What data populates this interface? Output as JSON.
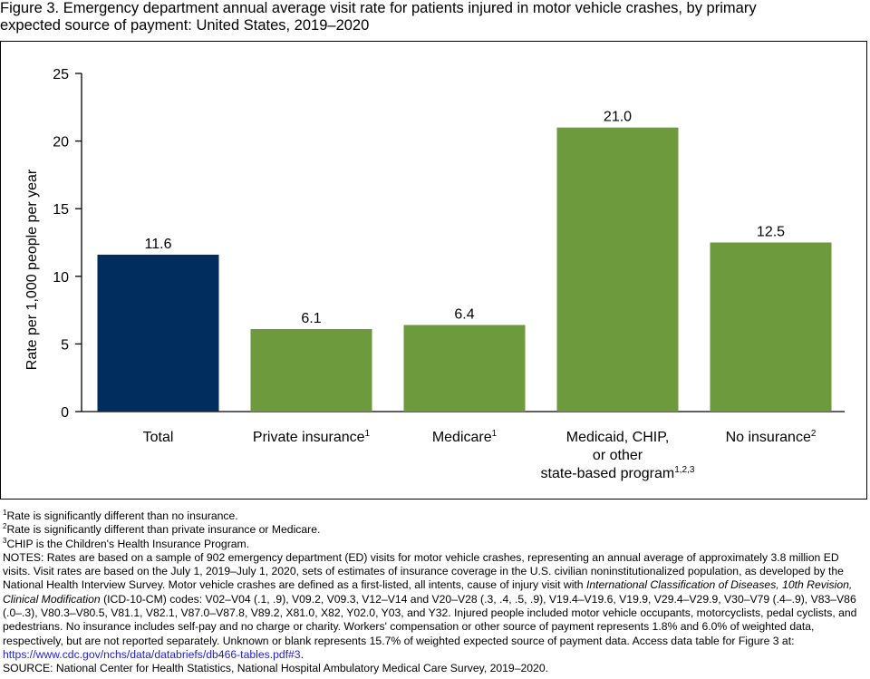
{
  "figure": {
    "title_line1": "Figure 3. Emergency department annual average visit rate for patients injured in motor vehicle crashes, by primary",
    "title_line2": "expected source of payment: United States, 2019–2020"
  },
  "chart_data": {
    "type": "bar",
    "ylabel": "Rate per 1,000 people per year",
    "xlabel": "",
    "ylim": [
      0,
      25
    ],
    "yticks": [
      0,
      5,
      10,
      15,
      20,
      25
    ],
    "grid": false,
    "categories": [
      {
        "lines": [
          "Total"
        ],
        "sup": ""
      },
      {
        "lines": [
          "Private insurance"
        ],
        "sup": "1"
      },
      {
        "lines": [
          "Medicare"
        ],
        "sup": "1"
      },
      {
        "lines": [
          "Medicaid, CHIP,",
          "or other",
          "state-based program"
        ],
        "sup": "1,2,3"
      },
      {
        "lines": [
          "No insurance"
        ],
        "sup": "2"
      }
    ],
    "values": [
      11.6,
      6.1,
      6.4,
      21.0,
      12.5
    ],
    "value_labels": [
      "11.6",
      "6.1",
      "6.4",
      "21.0",
      "12.5"
    ],
    "colors": [
      "#002d5e",
      "#6c9a3c",
      "#6c9a3c",
      "#6c9a3c",
      "#6c9a3c"
    ]
  },
  "footnotes": {
    "fn1": "Rate is significantly different than no insurance.",
    "fn2": "Rate is significantly different than private insurance or Medicare.",
    "fn3": "CHIP is the Children's Health Insurance Program.",
    "notes_a": "NOTES: Rates are based on a sample of 902 emergency department (ED) visits for motor vehicle crashes, representing an annual average of approximately 3.8 million ED visits. Visit rates are based on the July 1, 2019–July 1, 2020, sets of estimates of insurance coverage in the U.S. civilian noninstitutionalized population, as developed by the National Health Interview Survey. Motor vehicle crashes are defined as a first-listed, all intents, cause of injury visit with ",
    "notes_italic": "International Classification of Diseases, 10th Revision, Clinical Modification",
    "notes_b": " (ICD-10-CM) codes: V02–V04 (.1, .9), V09.2, V09.3, V12–V14 and V20–V28 (.3, .4, .5, .9), V19.4–V19.6, V19.9, V29.4–V29.9, V30–V79 (.4–.9), V83–V86 (.0–.3), V80.3–V80.5, V81.1, V82.1, V87.0–V87.8, V89.2, X81.0, X82, Y02.0, Y03, and Y32. Injured people included motor vehicle occupants, motorcyclists, pedal cyclists, and pedestrians. No insurance includes self-pay and no charge or charity. Workers' compensation or other source of payment represents 1.8% and 6.0% of weighted data, respectively, but are not reported separately. Unknown or blank represents 15.7% of weighted expected source of payment data. Access data table for Figure 3 at: ",
    "notes_link": "https://www.cdc.gov/nchs/data/databriefs/db466-tables.pdf#3",
    "notes_end": ".",
    "source": "SOURCE: National Center for Health Statistics, National Hospital Ambulatory Medical Care Survey, 2019–2020."
  }
}
